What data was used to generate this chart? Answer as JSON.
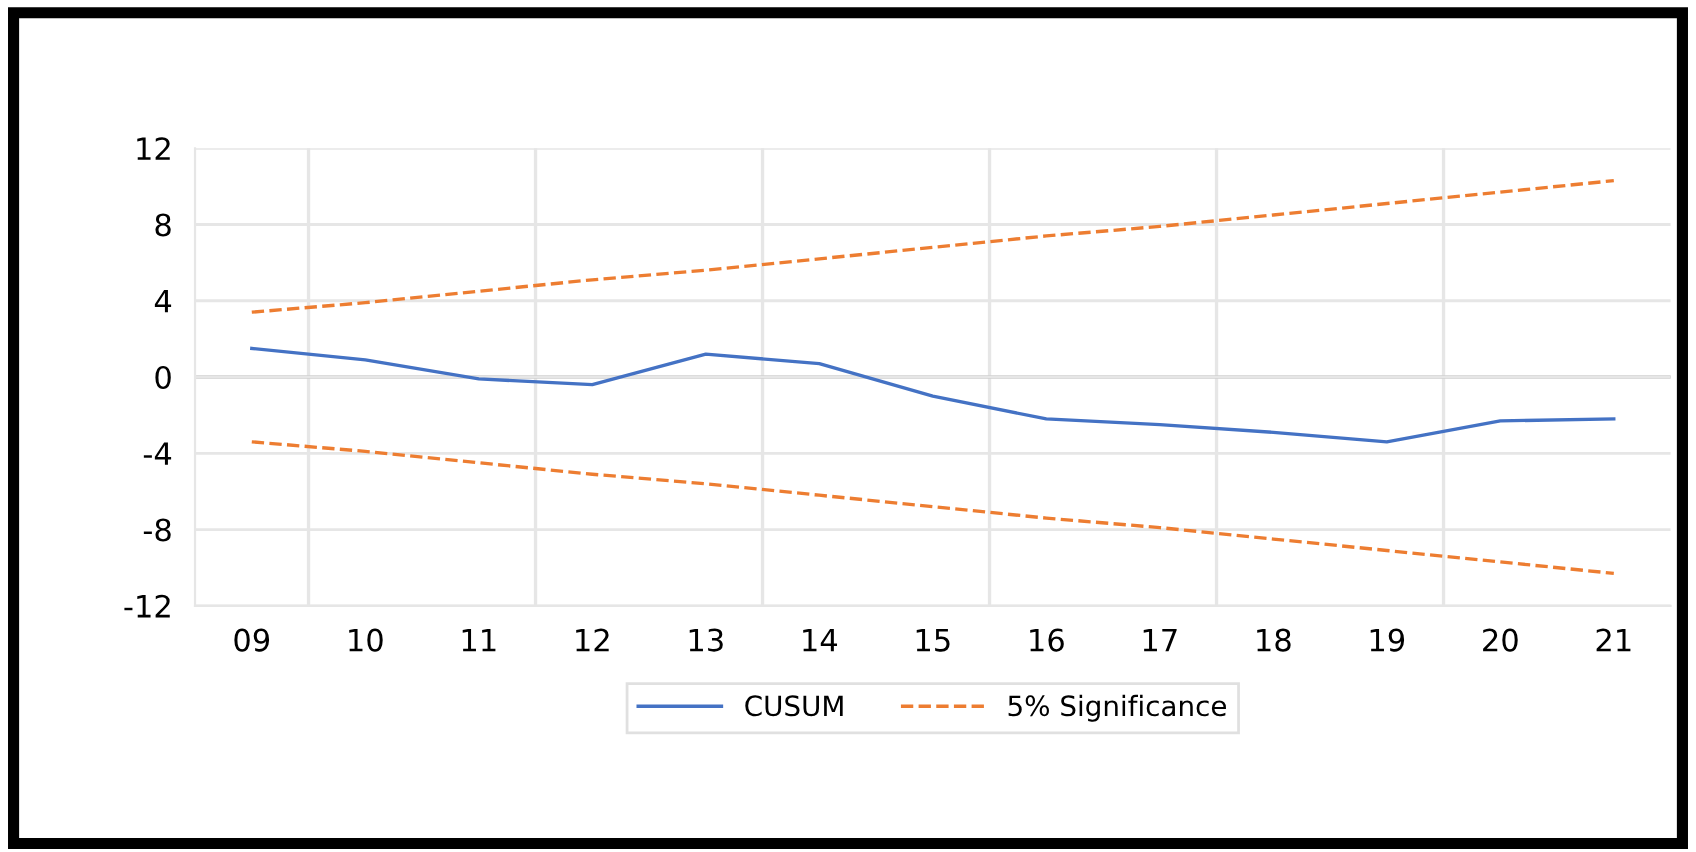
{
  "chart_data": {
    "type": "line",
    "categories": [
      "09",
      "10",
      "11",
      "12",
      "13",
      "14",
      "15",
      "16",
      "17",
      "18",
      "19",
      "20",
      "21"
    ],
    "series": [
      {
        "name": "CUSUM",
        "color": "#4472c4",
        "line_style": "solid",
        "values": [
          1.5,
          0.9,
          -0.1,
          -0.4,
          1.2,
          0.7,
          -1.0,
          -2.2,
          -2.5,
          -2.9,
          -3.4,
          -2.3,
          -2.2
        ]
      },
      {
        "name": "5% Significance",
        "color": "#ed7d31",
        "line_style": "dashed",
        "values": [
          3.4,
          3.9,
          4.5,
          5.1,
          5.6,
          6.2,
          6.8,
          7.4,
          7.9,
          8.5,
          9.1,
          9.7,
          10.3
        ]
      },
      {
        "color": "#ed7d31",
        "line_style": "dashed",
        "values": [
          -3.4,
          -3.9,
          -4.5,
          -5.1,
          -5.6,
          -6.2,
          -6.8,
          -7.4,
          -7.9,
          -8.5,
          -9.1,
          -9.7,
          -10.3
        ]
      }
    ],
    "ylim": [
      -12,
      12
    ],
    "yticks": [
      -12,
      -8,
      -4,
      0,
      4,
      8,
      12
    ],
    "ref_lines": [
      {
        "axis": "y",
        "value": 0,
        "color": "#a6a6a6"
      }
    ],
    "grid": true,
    "legend": "bottom"
  }
}
